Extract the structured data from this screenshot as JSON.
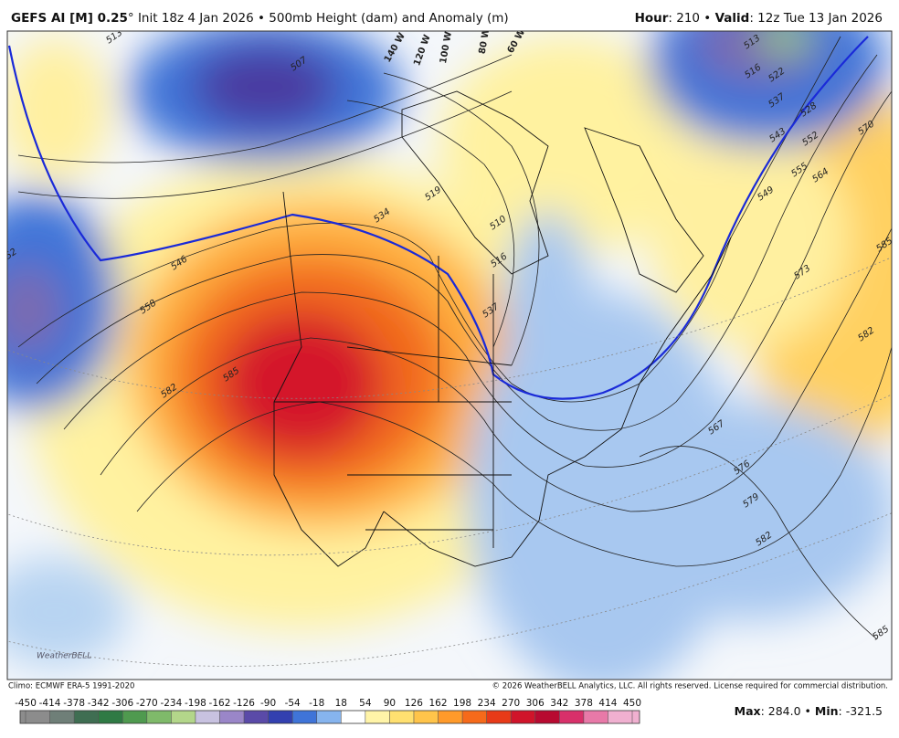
{
  "header": {
    "left_bold": "GEFS AI [M] 0.25",
    "left_rest": "° Init 18z 4 Jan 2026 • 500mb Height (dam) and Anomaly (m)",
    "hour_label": "Hour",
    "hour_rest": ": 210 • ",
    "valid_label": "Valid",
    "valid_rest": ": 12z Tue 13 Jan 2026"
  },
  "map": {
    "longitude_labels": [
      "140 W",
      "120 W",
      "100 W",
      "80 W",
      "60 W"
    ],
    "contour_labels": [
      "513",
      "507",
      "513",
      "516",
      "522",
      "528",
      "543",
      "537",
      "552",
      "570",
      "555",
      "564",
      "549",
      "573",
      "585",
      "582",
      "519",
      "534",
      "510",
      "516",
      "546",
      "558",
      "585",
      "582",
      "537",
      "567",
      "576",
      "579",
      "582",
      "585",
      "52"
    ]
  },
  "footer": {
    "climo": "Climo: ECMWF ERA-5 1991-2020",
    "copyright": "© 2026 WeatherBELL Analytics, LLC. All rights reserved. License required for commercial distribution.",
    "logo": "WeatherBELL"
  },
  "colorbar": {
    "ticks": [
      -450,
      -414,
      -378,
      -342,
      -306,
      -270,
      -234,
      -198,
      -162,
      -126,
      -90,
      -54,
      -18,
      18,
      54,
      90,
      126,
      162,
      198,
      234,
      270,
      306,
      342,
      378,
      414,
      450
    ],
    "colors": [
      "#8c8c8c",
      "#6f7f78",
      "#3f6e52",
      "#2f7a44",
      "#4f9a4f",
      "#7fba6a",
      "#b3d68a",
      "#c8c2e0",
      "#9a86c8",
      "#5a4aa8",
      "#3340b0",
      "#3f74d8",
      "#86b4ee",
      "#ffffff",
      "#fff4a8",
      "#ffe070",
      "#ffc44a",
      "#ff9a2a",
      "#f66a1a",
      "#e83a18",
      "#d0142a",
      "#b80a30",
      "#d8306a",
      "#e879a8",
      "#f0b0d0"
    ]
  },
  "stats": {
    "max_label": "Max",
    "max_rest": ": 284.0 • ",
    "min_label": "Min",
    "min_rest": ": -321.5"
  }
}
